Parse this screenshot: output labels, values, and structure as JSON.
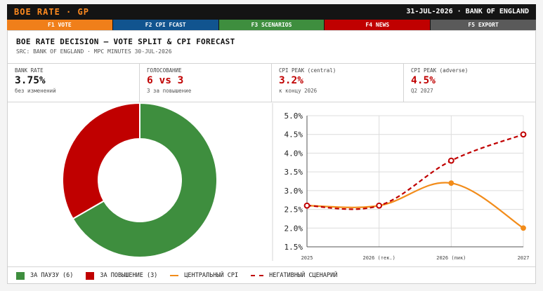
{
  "header": {
    "brand": "BOE RATE · GP",
    "date_source": "31-JUL-2026 · BANK OF ENGLAND"
  },
  "fkeys": [
    {
      "label": "F1 VOTE",
      "color": "#f07f1a"
    },
    {
      "label": "F2 CPI FCAST",
      "color": "#11548f"
    },
    {
      "label": "F3 SCENARIOS",
      "color": "#3e8e3e"
    },
    {
      "label": "F4 NEWS",
      "color": "#c00000"
    },
    {
      "label": "F5 EXPORT",
      "color": "#5a5a5a"
    }
  ],
  "panel": {
    "title": "BOE RATE DECISION — VOTE SPLIT & CPI FORECAST",
    "subtitle": "SRC: BANK OF ENGLAND · MPC MINUTES 30-JUL-2026"
  },
  "stats": [
    {
      "label": "BANK RATE",
      "value": "3.75%",
      "note": "без изменений",
      "color": "#111111"
    },
    {
      "label": "ГОЛОСОВАНИЕ",
      "value": "6 vs 3",
      "note": "3 за повышение",
      "color": "#c00000"
    },
    {
      "label": "CPI PEAK (central)",
      "value": "3.2%",
      "note": "к концу 2026",
      "color": "#c00000"
    },
    {
      "label": "CPI PEAK (adverse)",
      "value": "4.5%",
      "note": "Q2 2027",
      "color": "#c00000"
    }
  ],
  "legend": {
    "hold": "ЗА ПАУЗУ (6)",
    "hike": "ЗА ПОВЫШЕНИЕ (3)",
    "central": "ЦЕНТРАЛЬНЫЙ CPI",
    "adverse": "НЕГАТИВНЫЙ СЦЕНАРИЙ"
  },
  "chart_data": [
    {
      "type": "pie",
      "donut": true,
      "slices": [
        {
          "label": "ЗА ПАУЗУ (6)",
          "value": 6,
          "color": "#3e8e3e"
        },
        {
          "label": "ЗА ПОВЫШЕНИЕ (3)",
          "value": 3,
          "color": "#c00000"
        }
      ]
    },
    {
      "type": "line",
      "categories": [
        "2025",
        "2026 (тек.)",
        "2026 (пик)",
        "2027"
      ],
      "series": [
        {
          "name": "ЦЕНТРАЛЬНЫЙ CPI",
          "values": [
            2.6,
            2.6,
            3.2,
            2.0
          ],
          "color": "#f28c1a",
          "style": "solid"
        },
        {
          "name": "НЕГАТИВНЫЙ СЦЕНАРИЙ",
          "values": [
            2.6,
            2.6,
            3.8,
            4.5
          ],
          "color": "#c00000",
          "style": "dashed"
        }
      ],
      "ylim": [
        1.5,
        5.0
      ],
      "yticks": [
        "1.5%",
        "2.0%",
        "2.5%",
        "3.0%",
        "3.5%",
        "4.0%",
        "4.5%",
        "5.0%"
      ],
      "grid": true
    }
  ]
}
